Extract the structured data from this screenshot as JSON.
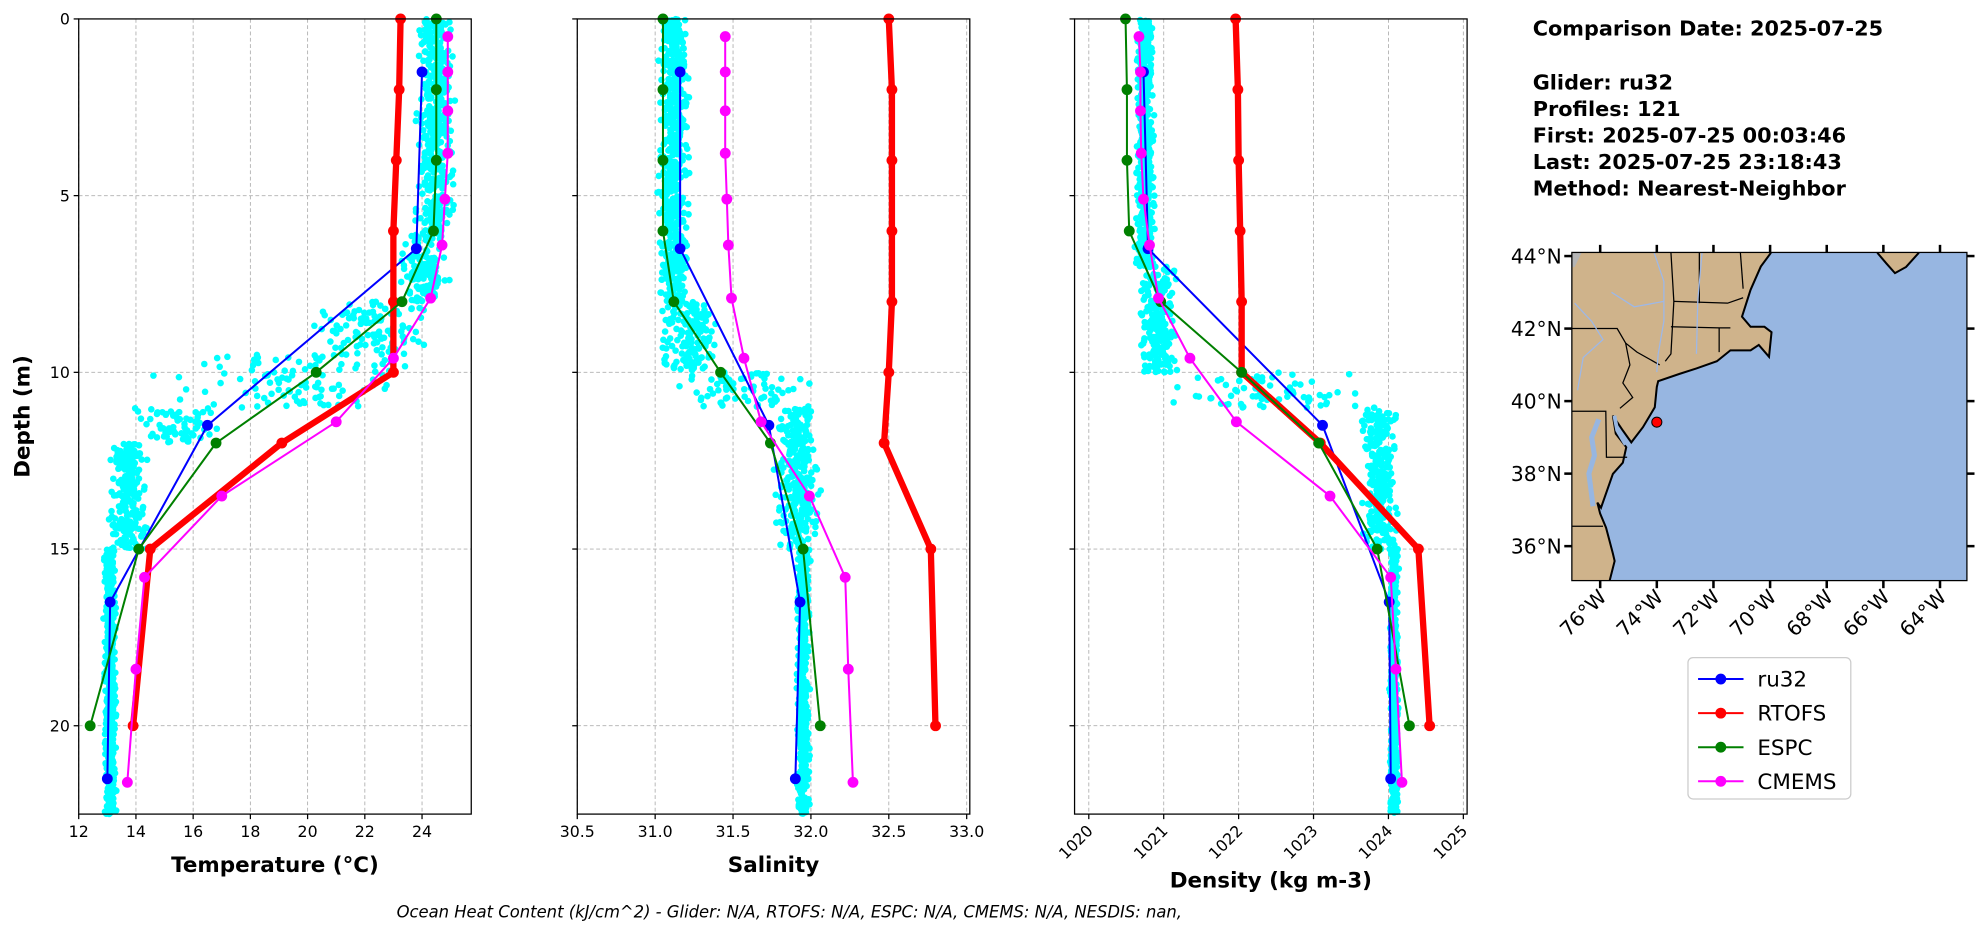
{
  "info": {
    "comparison_date": "Comparison Date: 2025-07-25",
    "glider": "Glider: ru32",
    "profiles": "Profiles: 121",
    "first": "First: 2025-07-25 00:03:46",
    "last": "Last: 2025-07-25 23:18:43",
    "method": "Method: Nearest-Neighbor"
  },
  "footer": "Ocean Heat Content (kJ/cm^2) - Glider: N/A,  RTOFS: N/A,  ESPC: N/A,  CMEMS: N/A,  NESDIS: nan,",
  "ylabel": "Depth (m)",
  "legend": [
    {
      "name": "ru32",
      "color": "#0000ff"
    },
    {
      "name": "RTOFS",
      "color": "#ff0000"
    },
    {
      "name": "ESPC",
      "color": "#008000"
    },
    {
      "name": "CMEMS",
      "color": "#ff00ff"
    }
  ],
  "chart_data": [
    {
      "type": "line",
      "xlabel": "Temperature (°C)",
      "ylabel": "Depth (m)",
      "xlim": [
        12,
        25.72
      ],
      "ylim": [
        22.5,
        0
      ],
      "xticks": [
        12,
        14,
        16,
        18,
        20,
        22,
        24
      ],
      "yticks": [
        0,
        5,
        10,
        15,
        20
      ],
      "grid": true,
      "scatter_envelope": [
        [
          0,
          6,
          23.6,
          25.3
        ],
        [
          6,
          8,
          23.0,
          25.1
        ],
        [
          8,
          9.5,
          20.0,
          24.9
        ],
        [
          9.5,
          11,
          14.0,
          24.6
        ],
        [
          11,
          12,
          13.3,
          17.5
        ],
        [
          12,
          15,
          12.9,
          14.6
        ],
        [
          15,
          22.5,
          12.85,
          13.35
        ]
      ],
      "series": [
        {
          "name": "ru32",
          "depth": [
            1.5,
            6.5,
            11.5,
            16.5,
            21.5
          ],
          "values": [
            24.0,
            23.8,
            16.5,
            13.1,
            13.0
          ]
        },
        {
          "name": "RTOFS",
          "depth": [
            0,
            2,
            4,
            6,
            8,
            10,
            12,
            15,
            20
          ],
          "values": [
            23.25,
            23.2,
            23.1,
            23.0,
            23.0,
            23.0,
            19.1,
            14.5,
            13.9
          ]
        },
        {
          "name": "ESPC",
          "depth": [
            0,
            2,
            4,
            6,
            8,
            10,
            12,
            15,
            20
          ],
          "values": [
            24.5,
            24.5,
            24.5,
            24.4,
            23.3,
            20.3,
            16.8,
            14.1,
            12.4
          ]
        },
        {
          "name": "CMEMS",
          "depth": [
            0.5,
            1.5,
            2.6,
            3.8,
            5.1,
            6.4,
            7.9,
            9.6,
            11.4,
            13.5,
            15.8,
            18.4,
            21.6
          ],
          "values": [
            24.9,
            24.9,
            24.9,
            24.9,
            24.8,
            24.7,
            24.3,
            23.0,
            21.0,
            17.0,
            14.3,
            14.0,
            13.7
          ]
        }
      ]
    },
    {
      "type": "line",
      "xlabel": "Salinity",
      "ylabel": "",
      "xlim": [
        30.5,
        33.02
      ],
      "ylim": [
        22.5,
        0
      ],
      "xticks": [
        30.5,
        31.0,
        31.5,
        32.0,
        32.5,
        33.0
      ],
      "yticks": [
        0,
        5,
        10,
        15,
        20
      ],
      "grid": true,
      "scatter_envelope": [
        [
          0,
          8,
          31.0,
          31.23
        ],
        [
          8,
          10,
          31.0,
          31.45
        ],
        [
          10,
          11,
          31.0,
          32.1
        ],
        [
          11,
          15,
          31.75,
          32.08
        ],
        [
          15,
          22.5,
          31.9,
          32.0
        ]
      ],
      "series": [
        {
          "name": "ru32",
          "depth": [
            1.5,
            6.5,
            11.5,
            16.5,
            21.5
          ],
          "values": [
            31.16,
            31.16,
            31.73,
            31.93,
            31.9
          ]
        },
        {
          "name": "RTOFS",
          "depth": [
            0,
            2,
            4,
            6,
            8,
            10,
            12,
            15,
            20
          ],
          "values": [
            32.5,
            32.52,
            32.52,
            32.52,
            32.52,
            32.5,
            32.47,
            32.77,
            32.8
          ]
        },
        {
          "name": "ESPC",
          "depth": [
            0,
            2,
            4,
            6,
            8,
            10,
            12,
            15,
            20
          ],
          "values": [
            31.05,
            31.05,
            31.05,
            31.05,
            31.12,
            31.42,
            31.74,
            31.95,
            32.06
          ]
        },
        {
          "name": "CMEMS",
          "depth": [
            0.5,
            1.5,
            2.6,
            3.8,
            5.1,
            6.4,
            7.9,
            9.6,
            11.4,
            13.5,
            15.8,
            18.4,
            21.6
          ],
          "values": [
            31.45,
            31.45,
            31.45,
            31.45,
            31.46,
            31.47,
            31.49,
            31.57,
            31.68,
            31.99,
            32.22,
            32.24,
            32.27
          ]
        }
      ]
    },
    {
      "type": "line",
      "xlabel": "Density (kg m-3)",
      "ylabel": "",
      "xlim": [
        1019.81,
        1025.05
      ],
      "ylim": [
        22.5,
        0
      ],
      "xticks": [
        1020,
        1021,
        1022,
        1023,
        1024,
        1025
      ],
      "yticks": [
        0,
        5,
        10,
        15,
        20
      ],
      "grid": true,
      "scatter_envelope": [
        [
          0,
          7,
          1020.6,
          1020.9
        ],
        [
          7,
          10,
          1020.6,
          1021.25
        ],
        [
          10,
          11,
          1020.8,
          1024.0
        ],
        [
          11,
          15,
          1023.6,
          1024.15
        ],
        [
          15,
          22.5,
          1024.0,
          1024.15
        ]
      ],
      "series": [
        {
          "name": "ru32",
          "depth": [
            1.5,
            6.5,
            11.5,
            16.5,
            21.5
          ],
          "values": [
            1020.73,
            1020.79,
            1023.12,
            1024.01,
            1024.03
          ]
        },
        {
          "name": "RTOFS",
          "depth": [
            0,
            2,
            4,
            6,
            8,
            10,
            12,
            15,
            20
          ],
          "values": [
            1021.96,
            1021.99,
            1022.0,
            1022.02,
            1022.04,
            1022.04,
            1023.09,
            1024.4,
            1024.55
          ]
        },
        {
          "name": "ESPC",
          "depth": [
            0,
            2,
            4,
            6,
            8,
            10,
            12,
            15,
            20
          ],
          "values": [
            1020.49,
            1020.51,
            1020.51,
            1020.54,
            1020.96,
            1022.04,
            1023.07,
            1023.85,
            1024.28
          ]
        },
        {
          "name": "CMEMS",
          "depth": [
            0.5,
            1.5,
            2.6,
            3.8,
            5.1,
            6.4,
            7.9,
            9.6,
            11.4,
            13.5,
            15.8,
            18.4,
            21.6
          ],
          "values": [
            1020.67,
            1020.69,
            1020.69,
            1020.7,
            1020.73,
            1020.81,
            1020.93,
            1021.35,
            1021.97,
            1023.22,
            1024.03,
            1024.1,
            1024.18
          ]
        }
      ]
    }
  ],
  "map": {
    "lat_ticks": [
      {
        "v": 44,
        "label": "44°N"
      },
      {
        "v": 42,
        "label": "42°N"
      },
      {
        "v": 40,
        "label": "40°N"
      },
      {
        "v": 38,
        "label": "38°N"
      },
      {
        "v": 36,
        "label": "36°N"
      }
    ],
    "lon_ticks": [
      {
        "v": -76,
        "label": "76°W"
      },
      {
        "v": -74,
        "label": "74°W"
      },
      {
        "v": -72,
        "label": "72°W"
      },
      {
        "v": -70,
        "label": "70°W"
      },
      {
        "v": -68,
        "label": "68°W"
      },
      {
        "v": -66,
        "label": "66°W"
      },
      {
        "v": -64,
        "label": "64°W"
      }
    ],
    "extent": {
      "lon": [
        -77.0,
        -63.05
      ],
      "lat": [
        35.05,
        44.1
      ]
    },
    "glider_position": {
      "lon": -74.0,
      "lat": 39.42
    },
    "ocean_color": "#97b6e1",
    "land_color": "#cfb38b"
  }
}
